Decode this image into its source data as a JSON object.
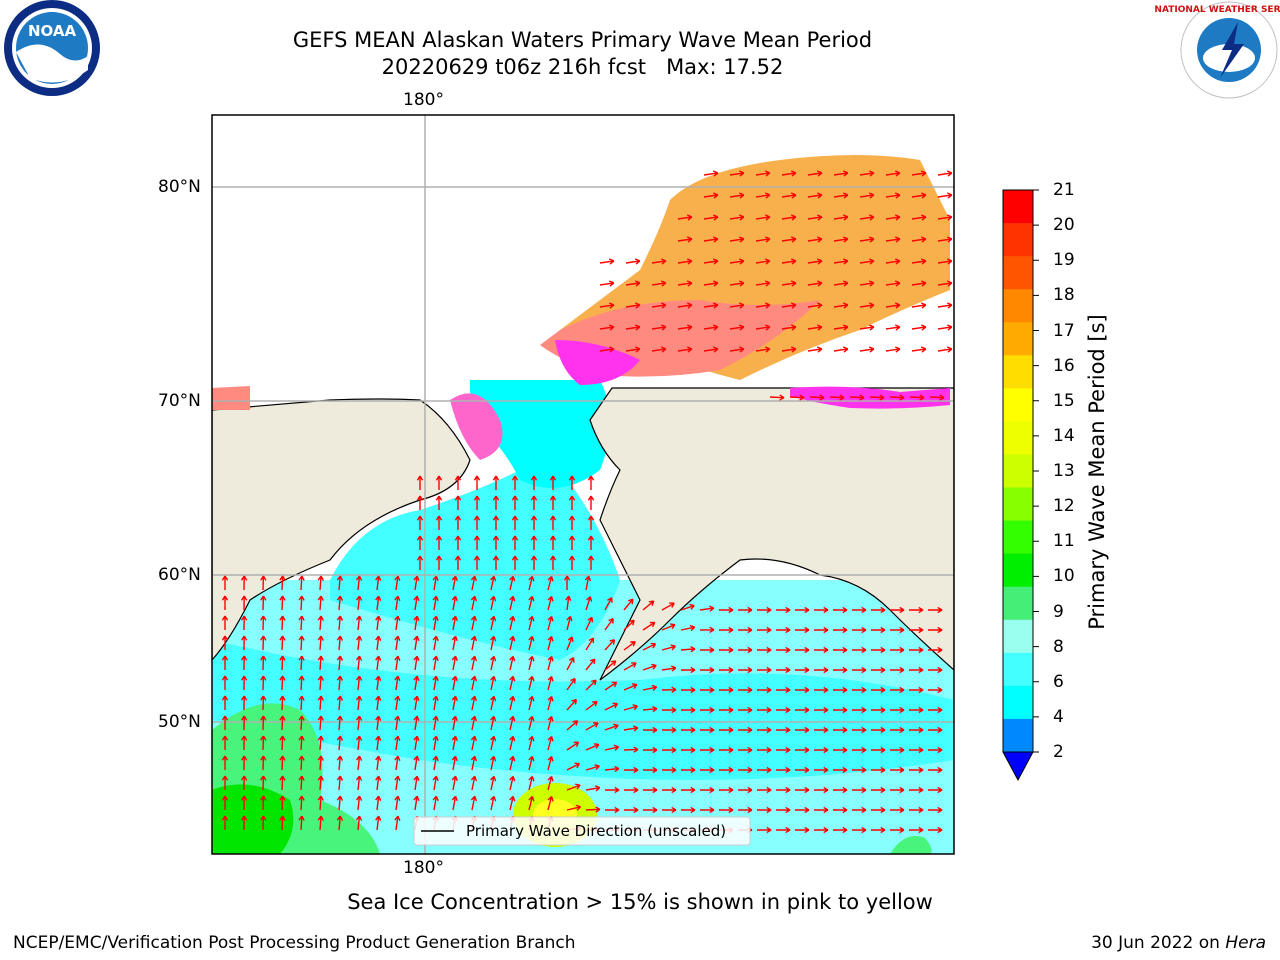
{
  "header": {
    "title": "GEFS MEAN Alaskan Waters Primary Wave Mean Period",
    "subtitle": "20220629 t06z 216h fcst   Max: 17.52"
  },
  "logos": {
    "noaa": {
      "text": "NOAA",
      "icon": "noaa-logo"
    },
    "nws": {
      "text": "NATIONAL WEATHER SERVICE",
      "icon": "nws-logo"
    }
  },
  "map": {
    "lon_label_top": "180°",
    "lon_label_bottom": "180°",
    "lat_labels": [
      "80°N",
      "70°N",
      "60°N",
      "50°N"
    ],
    "legend_label": "Primary Wave Direction (unscaled)",
    "colors": {
      "land": "#efebdc",
      "ocean_low": "#00ffff",
      "ocean_mid": "#88ffff",
      "ocean_green": "#47f57c",
      "ice_orange": "#f7b04b",
      "ice_pink": "#ff7f7f",
      "ice_magenta": "#ff33ee",
      "arrow": "#ff0000"
    }
  },
  "colorbar": {
    "label": "Primary Wave Mean Period [s]",
    "ticks": [
      "21",
      "20",
      "19",
      "18",
      "17",
      "16",
      "15",
      "14",
      "13",
      "12",
      "11",
      "10",
      "9",
      "8",
      "6",
      "4",
      "2"
    ],
    "colors": [
      "#ff0000",
      "#ff3300",
      "#ff5500",
      "#ff8800",
      "#ffaa00",
      "#ffdd00",
      "#ffff00",
      "#eeff00",
      "#ccff00",
      "#88ff00",
      "#33ff00",
      "#00ee00",
      "#44ee77",
      "#99ffee",
      "#44ffff",
      "#00ffff",
      "#0088ff",
      "#0000ff"
    ]
  },
  "caption": "Sea Ice Concentration > 15% is shown in pink to yellow",
  "footer": {
    "left": "NCEP/EMC/Verification Post Processing Product Generation Branch",
    "right_date": "30 Jun 2022 on ",
    "right_host": "Hera"
  }
}
